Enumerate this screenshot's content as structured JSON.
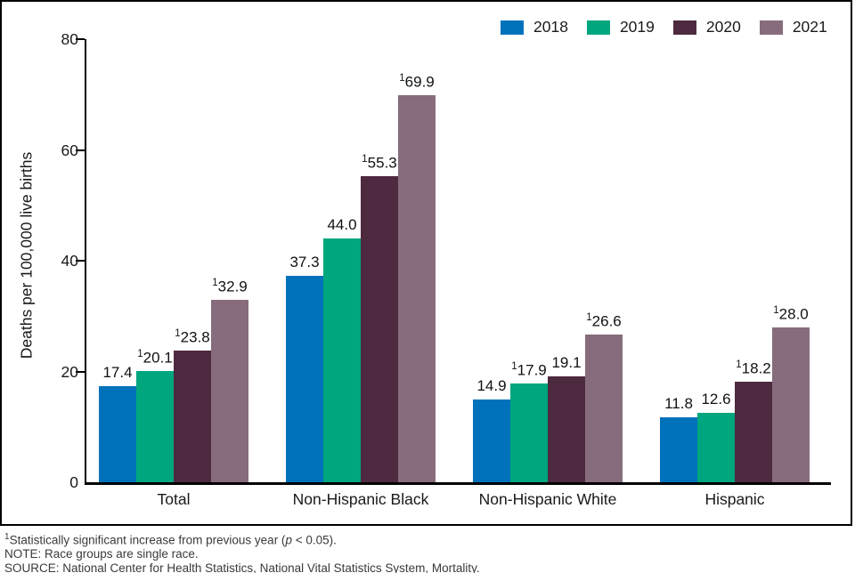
{
  "chart_data": {
    "type": "bar",
    "title": "",
    "ylabel": "Deaths per 100,000 live births",
    "ylim": [
      0,
      80
    ],
    "yticks": [
      0,
      20,
      40,
      60,
      80
    ],
    "grid": false,
    "legend_position": "top-right",
    "significance_marker": "1",
    "categories": [
      "Total",
      "Non-Hispanic Black",
      "Non-Hispanic White",
      "Hispanic"
    ],
    "series": [
      {
        "name": "2018",
        "color": "#0072bc",
        "values": [
          17.4,
          37.3,
          14.9,
          11.8
        ],
        "significant": [
          false,
          false,
          false,
          false
        ]
      },
      {
        "name": "2019",
        "color": "#00a67e",
        "values": [
          20.1,
          44.0,
          17.9,
          12.6
        ],
        "significant": [
          true,
          false,
          true,
          false
        ]
      },
      {
        "name": "2020",
        "color": "#4e2a40",
        "values": [
          23.8,
          55.3,
          19.1,
          18.2
        ],
        "significant": [
          true,
          true,
          false,
          true
        ]
      },
      {
        "name": "2021",
        "color": "#876c7d",
        "values": [
          32.9,
          69.9,
          26.6,
          28.0
        ],
        "significant": [
          true,
          true,
          true,
          true
        ]
      }
    ]
  },
  "footnotes": {
    "sig": {
      "sup": "1",
      "pre": "Statistically significant increase from previous year (",
      "p": "p",
      "post": " < 0.05)."
    },
    "note": "NOTE: Race groups are single race.",
    "source": "SOURCE: National Center for Health Statistics, National Vital Statistics System, Mortality."
  }
}
